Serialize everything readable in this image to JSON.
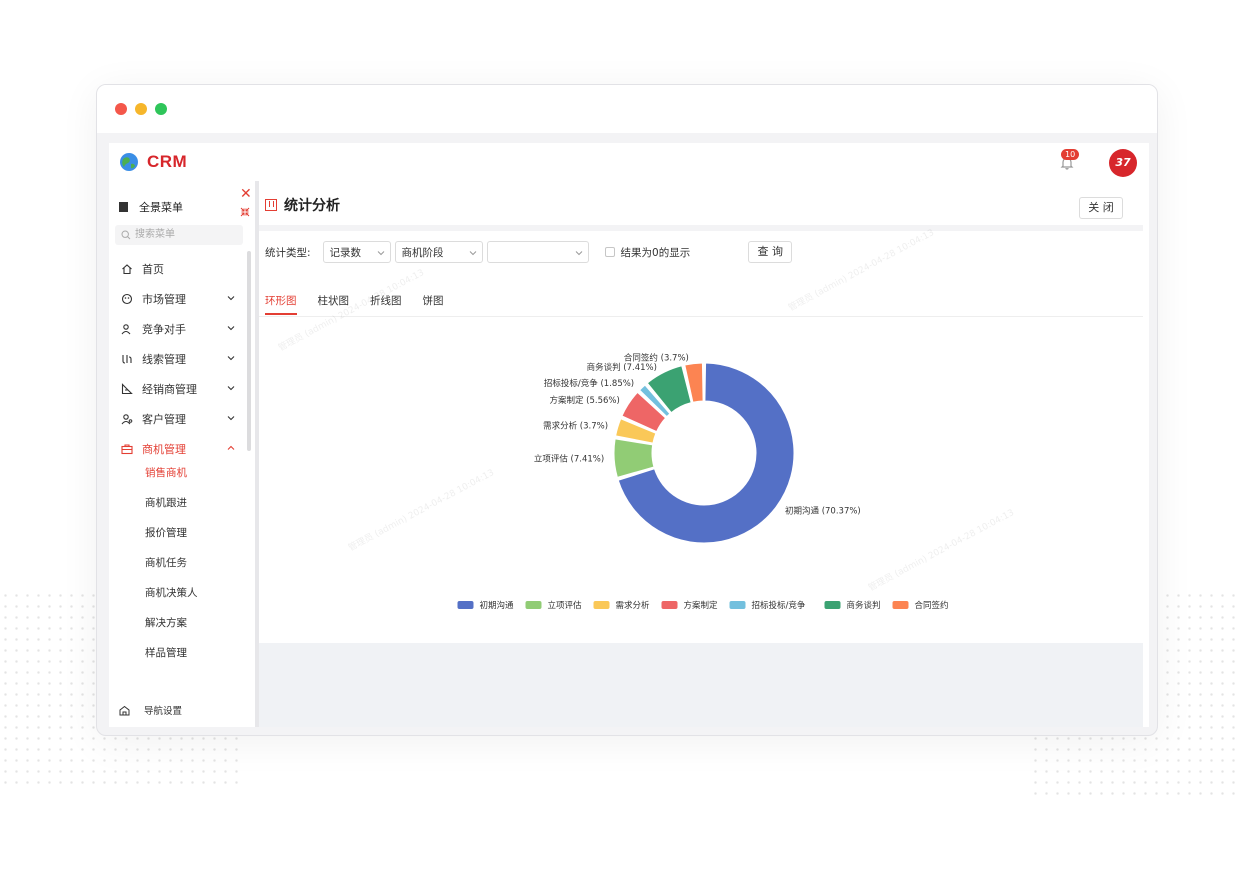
{
  "app": {
    "logo_text": "CRM",
    "notification_count": "10",
    "avatar_text": "37"
  },
  "sidebar": {
    "panorama_label": "全景菜单",
    "search_placeholder": "搜索菜单",
    "items": [
      {
        "label": "首页",
        "icon": "home-icon"
      },
      {
        "label": "市场管理",
        "icon": "market-icon"
      },
      {
        "label": "竞争对手",
        "icon": "competitor-icon"
      },
      {
        "label": "线索管理",
        "icon": "leads-icon"
      },
      {
        "label": "经销商管理",
        "icon": "dealer-icon"
      },
      {
        "label": "客户管理",
        "icon": "customer-icon"
      },
      {
        "label": "商机管理",
        "icon": "briefcase-icon"
      }
    ],
    "sub_items": [
      "销售商机",
      "商机跟进",
      "报价管理",
      "商机任务",
      "商机决策人",
      "解决方案",
      "样品管理"
    ],
    "nav_settings_label": "导航设置"
  },
  "panel": {
    "title": "统计分析",
    "close_label": "关 闭",
    "filter_label": "统计类型:",
    "select_record": "记录数",
    "select_stage": "商机阶段",
    "select_empty": "",
    "checkbox_label": "结果为0的显示",
    "query_label": "查 询",
    "tabs": [
      "环形图",
      "柱状图",
      "折线图",
      "饼图"
    ]
  },
  "chart_data": {
    "type": "pie",
    "variant": "donut",
    "title": "",
    "categories": [
      "初期沟通",
      "立项评估",
      "需求分析",
      "方案制定",
      "招标投标/竞争",
      "商务谈判",
      "合同签约"
    ],
    "values": [
      70.37,
      7.41,
      3.7,
      5.56,
      1.85,
      7.41,
      3.7
    ],
    "labels": [
      "初期沟通 (70.37%)",
      "立项评估 (7.41%)",
      "需求分析 (3.7%)",
      "方案制定 (5.56%)",
      "招标投标/竞争 (1.85%)",
      "商务谈判 (7.41%)",
      "合同签约 (3.7%)"
    ],
    "colors": [
      "#5470c6",
      "#91cc75",
      "#fac858",
      "#ee6666",
      "#73c0de",
      "#3ba272",
      "#fc8452"
    ],
    "legend_position": "bottom"
  },
  "watermark_text": "管理员 (admin) 2024-04-28 10:04:13",
  "colors": {
    "accent": "#e33e33",
    "frame_bg": "#f3f3f5"
  }
}
